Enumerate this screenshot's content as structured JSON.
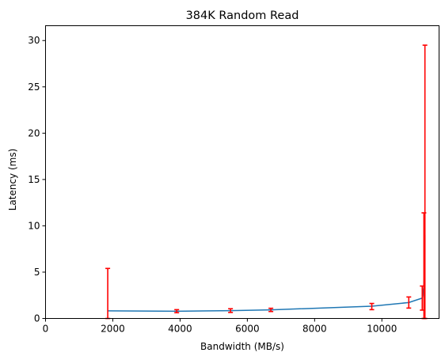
{
  "chart_data": {
    "type": "line",
    "title": "384K  Random Read",
    "xlabel": "Bandwidth (MB/s)",
    "ylabel": "Latency (ms)",
    "xlim": [
      0,
      11700
    ],
    "ylim": [
      0,
      31.6
    ],
    "x_ticks": [
      0,
      2000,
      4000,
      6000,
      8000,
      10000
    ],
    "y_ticks": [
      0,
      5,
      10,
      15,
      20,
      25,
      30
    ],
    "grid": false,
    "series": [
      {
        "color": "#1f77b4",
        "x": [
          1850,
          3900,
          5500,
          6700,
          9700,
          10800,
          11200,
          11250,
          11270,
          11280
        ],
        "y": [
          0.82,
          0.78,
          0.84,
          0.93,
          1.32,
          1.72,
          2.2,
          3.5,
          6.0,
          9.0
        ]
      }
    ],
    "error_bars": {
      "color": "#ff0000",
      "points": [
        {
          "x": 1850,
          "low": 0.0,
          "high": 5.4
        },
        {
          "x": 3900,
          "low": 0.62,
          "high": 0.95
        },
        {
          "x": 5500,
          "low": 0.65,
          "high": 1.05
        },
        {
          "x": 6700,
          "low": 0.75,
          "high": 1.1
        },
        {
          "x": 9700,
          "low": 0.95,
          "high": 1.62
        },
        {
          "x": 10800,
          "low": 1.12,
          "high": 2.32
        },
        {
          "x": 11200,
          "low": 0.9,
          "high": 3.5
        },
        {
          "x": 11250,
          "low": 0.0,
          "high": 11.4
        },
        {
          "x": 11280,
          "low": 0.0,
          "high": 29.5
        }
      ]
    }
  }
}
